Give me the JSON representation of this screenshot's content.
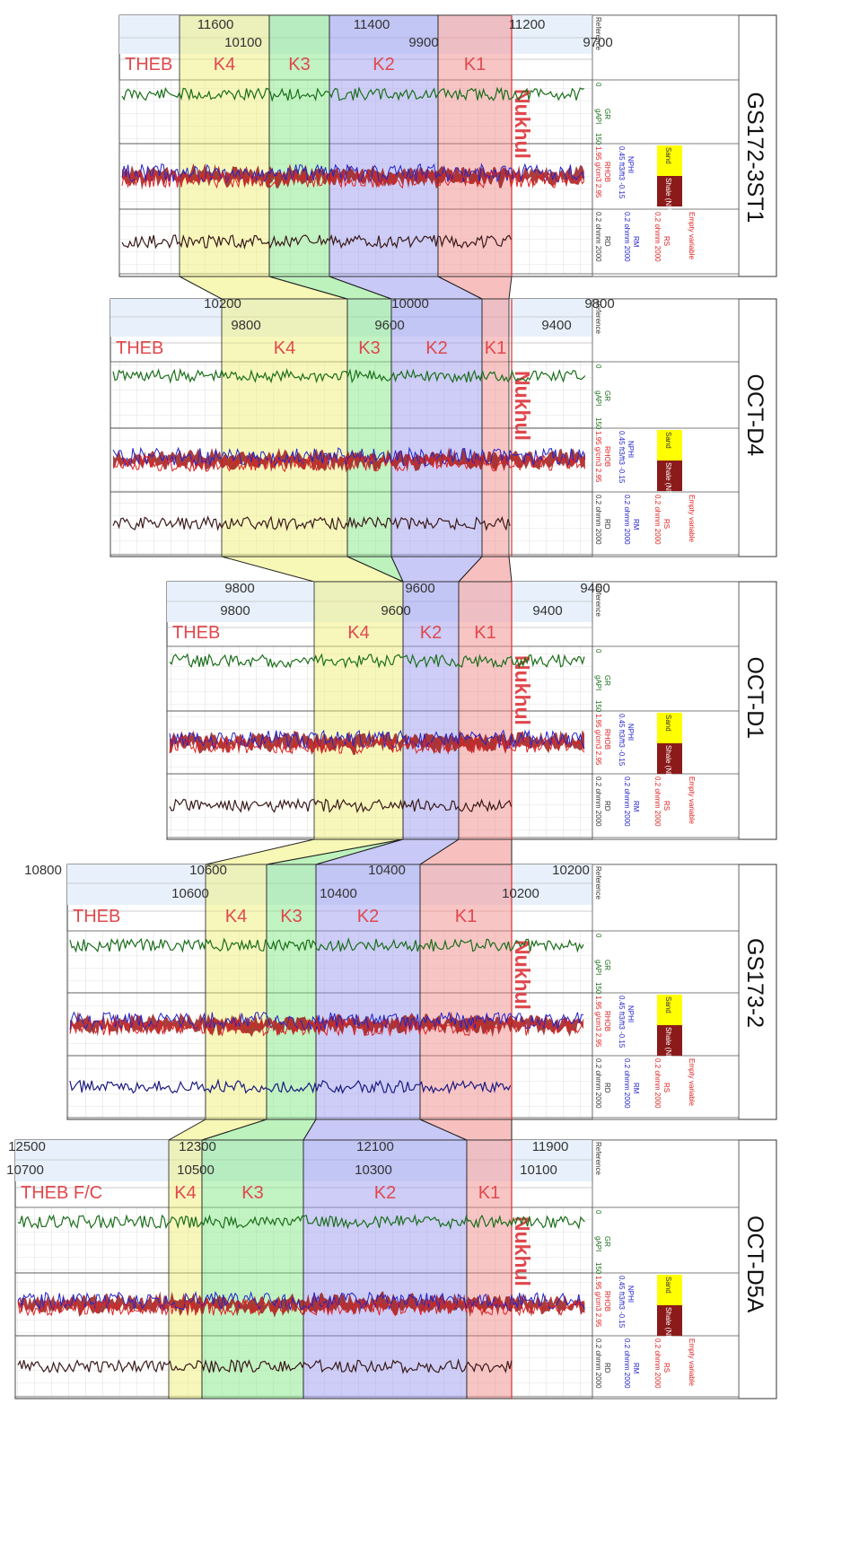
{
  "colors": {
    "K1": "#f28b8b",
    "K2": "#9c9cf0",
    "K3": "#86e886",
    "K4": "#f0f07a",
    "gr": "#1a6e1a",
    "rhob": "#e02020",
    "nphi": "#2222cc",
    "rd": "#3a1a1a",
    "label": "#e0484d"
  },
  "headers": {
    "ref": "Reference\n1:1000",
    "md": "MD\n(ft)",
    "tvdss": "TVDSS\n(ft)\n1:1000",
    "tvd": "TVD\n(ft)\n1:100",
    "phid": "Phid",
    "gr_min": "0",
    "gr_unit": "gAPI",
    "gr_name": "GR",
    "gr_max": "150",
    "rhob_min": "1.95",
    "rhob_unit": "g/cm3",
    "rhob_name": "RHOB",
    "rhob_max": "2.95",
    "nphi_min": "0.45",
    "nphi_unit": "ft3/ft3",
    "nphi_name": "NPHI",
    "nphi_max": "-0.15",
    "sand": "Sand",
    "shale": "Shale (NP",
    "rd_min": "0.2",
    "rd_unit": "ohmm",
    "rd_name": "RD",
    "rd_max": "2000",
    "rm_name": "RM",
    "rs_name": "RS",
    "empty": "Empty variable"
  },
  "wells": [
    {
      "name": "GS172-3ST1",
      "top_ticks": [
        "11600",
        "11400",
        "11200"
      ],
      "bot_ticks": [
        "10100",
        "9900",
        "9700"
      ],
      "zones": {
        "THEB": "THEB",
        "K4": "K4",
        "K3": "K3",
        "K2": "K2",
        "K1": "K1",
        "Nukhul": "Nukhul"
      }
    },
    {
      "name": "OCT-D4",
      "top_ticks": [
        "10200",
        "10000",
        "9800"
      ],
      "bot_ticks": [
        "9800",
        "9600",
        "9400"
      ],
      "zones": {
        "THEB": "THEB",
        "K4": "K4",
        "K3": "K3",
        "K2": "K2",
        "K1": "K1",
        "Nukhul": "Nukhul"
      }
    },
    {
      "name": "OCT-D1",
      "top_ticks": [
        "9800",
        "9600",
        "9400"
      ],
      "bot_ticks": [
        "9800",
        "9600",
        "9400"
      ],
      "zones": {
        "THEB": "THEB",
        "K4": "K4",
        "K2": "K2",
        "K1": "K1",
        "Nukhul": "Nukhul"
      }
    },
    {
      "name": "GS173-2",
      "top_ticks": [
        "10800",
        "10600",
        "10400",
        "10200"
      ],
      "bot_ticks": [
        "10600",
        "10400",
        "10200"
      ],
      "zones": {
        "THEB": "THEB",
        "K4": "K4",
        "K3": "K3",
        "K2": "K2",
        "K1": "K1",
        "Nukhul": "Nukhul"
      }
    },
    {
      "name": "OCT-D5A",
      "top_ticks": [
        "12500",
        "12300",
        "12100",
        "11900"
      ],
      "bot_ticks": [
        "10700",
        "10500",
        "10300",
        "10100"
      ],
      "zones": {
        "THEB": "THEB F/C",
        "K4": "K4",
        "K3": "K3",
        "K2": "K2",
        "K1": "K1",
        "Nukhul": "Nukhul"
      }
    }
  ]
}
